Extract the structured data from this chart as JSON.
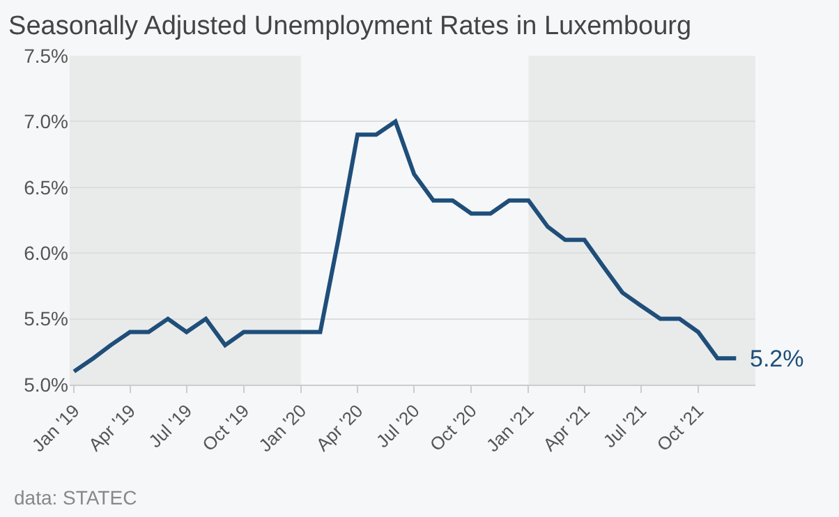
{
  "chart_data": {
    "type": "line",
    "title": "Seasonally Adjusted Unemployment Rates in Luxembourg",
    "x": [
      "2019-01",
      "2019-02",
      "2019-03",
      "2019-04",
      "2019-05",
      "2019-06",
      "2019-07",
      "2019-08",
      "2019-09",
      "2019-10",
      "2019-11",
      "2019-12",
      "2020-01",
      "2020-02",
      "2020-03",
      "2020-04",
      "2020-05",
      "2020-06",
      "2020-07",
      "2020-08",
      "2020-09",
      "2020-10",
      "2020-11",
      "2020-12",
      "2021-01",
      "2021-02",
      "2021-03",
      "2021-04",
      "2021-05",
      "2021-06",
      "2021-07",
      "2021-08",
      "2021-09",
      "2021-10",
      "2021-11",
      "2021-12"
    ],
    "series": [
      {
        "color": "#1f4e79",
        "values": [
          5.1,
          5.2,
          5.3,
          5.4,
          5.4,
          5.5,
          5.4,
          5.5,
          5.3,
          5.4,
          5.4,
          5.4,
          5.4,
          5.4,
          6.1,
          6.9,
          6.9,
          7.0,
          6.6,
          6.4,
          6.4,
          6.3,
          6.3,
          6.4,
          6.4,
          6.2,
          6.1,
          6.1,
          5.9,
          5.7,
          5.6,
          5.5,
          5.5,
          5.4,
          5.2,
          5.2
        ]
      }
    ],
    "xlim": [
      "2018-12-25",
      "2022-01-01"
    ],
    "xticks": [
      {
        "value": "2019-01-01",
        "label": "Jan '19"
      },
      {
        "value": "2019-04-01",
        "label": "Apr '19"
      },
      {
        "value": "2019-07-01",
        "label": "Jul '19"
      },
      {
        "value": "2019-10-01",
        "label": "Oct '19"
      },
      {
        "value": "2020-01-01",
        "label": "Jan '20"
      },
      {
        "value": "2020-04-01",
        "label": "Apr '20"
      },
      {
        "value": "2020-07-01",
        "label": "Jul '20"
      },
      {
        "value": "2020-10-01",
        "label": "Oct '20"
      },
      {
        "value": "2021-01-01",
        "label": "Jan '21"
      },
      {
        "value": "2021-04-01",
        "label": "Apr '21"
      },
      {
        "value": "2021-07-01",
        "label": "Jul '21"
      },
      {
        "value": "2021-10-01",
        "label": "Oct '21"
      }
    ],
    "ylim": [
      5.0,
      7.5
    ],
    "yticks": [
      {
        "value": 5.0,
        "label": "5.0%"
      },
      {
        "value": 5.5,
        "label": "5.5%"
      },
      {
        "value": 6.0,
        "label": "6.0%"
      },
      {
        "value": 6.5,
        "label": "6.5%"
      },
      {
        "value": 7.0,
        "label": "7.0%"
      },
      {
        "value": 7.5,
        "label": "7.5%"
      }
    ],
    "grid": "y",
    "marker": "none",
    "line_style": "solid",
    "bands": [
      {
        "axis": "x",
        "from": "2018-12-25",
        "to": "2020-01-01",
        "color": "#e9ebeb"
      },
      {
        "axis": "x",
        "from": "2021-01-01",
        "to": "2022-01-01",
        "color": "#e9ebeb"
      }
    ],
    "annotations": [
      {
        "text": "5.2%",
        "x": "2021-12",
        "y": 5.2
      },
      "data: STATEC"
    ]
  }
}
